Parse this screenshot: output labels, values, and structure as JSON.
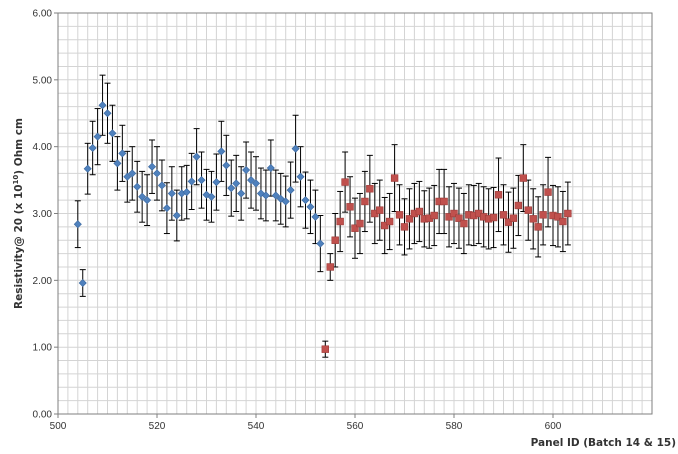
{
  "chart_data": {
    "type": "scatter",
    "title": "",
    "xlabel": "Panel  ID (Batch 14 & 15)",
    "ylabel": {
      "prefix": "Resistivity@ 20 (x 10",
      "sup": "10",
      "suffix": ") Ohm cm"
    },
    "xlim": [
      500,
      620
    ],
    "ylim": [
      0,
      6
    ],
    "x_ticks": [
      "500",
      "520",
      "540",
      "560",
      "580",
      "600"
    ],
    "y_ticks": [
      "0.00",
      "1.00",
      "2.00",
      "3.00",
      "4.00",
      "5.00",
      "6.00"
    ],
    "x_tick_values": [
      500,
      520,
      540,
      560,
      580,
      600
    ],
    "y_tick_values": [
      0,
      1,
      2,
      3,
      4,
      5,
      6
    ],
    "grid": true,
    "error_bars": true,
    "series": [
      {
        "marker": "diamond",
        "color": "#4f81bd",
        "x": [
          504,
          505,
          506,
          507,
          508,
          509,
          510,
          511,
          512,
          513,
          514,
          515,
          516,
          517,
          518,
          519,
          520,
          521,
          522,
          523,
          524,
          525,
          526,
          527,
          528,
          529,
          530,
          531,
          532,
          533,
          534,
          535,
          536,
          537,
          538,
          539,
          540,
          541,
          542,
          543,
          544,
          545,
          546,
          547,
          548,
          549,
          550,
          551,
          552,
          553
        ],
        "y": [
          2.84,
          1.96,
          3.67,
          3.98,
          4.15,
          4.62,
          4.5,
          4.2,
          3.75,
          3.9,
          3.55,
          3.6,
          3.4,
          3.25,
          3.2,
          3.7,
          3.6,
          3.42,
          3.08,
          3.3,
          2.97,
          3.3,
          3.32,
          3.48,
          3.85,
          3.5,
          3.28,
          3.25,
          3.47,
          3.93,
          3.72,
          3.38,
          3.45,
          3.3,
          3.65,
          3.5,
          3.45,
          3.3,
          3.27,
          3.68,
          3.27,
          3.22,
          3.18,
          3.35,
          3.97,
          3.55,
          3.2,
          3.1,
          2.95,
          2.55
        ],
        "err": [
          0.35,
          0.2,
          0.38,
          0.4,
          0.42,
          0.45,
          0.45,
          0.42,
          0.4,
          0.42,
          0.38,
          0.4,
          0.38,
          0.38,
          0.38,
          0.4,
          0.4,
          0.38,
          0.38,
          0.4,
          0.38,
          0.4,
          0.4,
          0.42,
          0.42,
          0.42,
          0.38,
          0.38,
          0.42,
          0.45,
          0.45,
          0.42,
          0.42,
          0.4,
          0.42,
          0.42,
          0.4,
          0.38,
          0.38,
          0.42,
          0.38,
          0.38,
          0.38,
          0.42,
          0.5,
          0.45,
          0.42,
          0.4,
          0.4,
          0.42
        ]
      },
      {
        "marker": "square",
        "color": "#c0504d",
        "x": [
          554,
          555,
          556,
          557,
          558,
          559,
          560,
          561,
          562,
          563,
          564,
          565,
          566,
          567,
          568,
          569,
          570,
          571,
          572,
          573,
          574,
          575,
          576,
          577,
          578,
          579,
          580,
          581,
          582,
          583,
          584,
          585,
          586,
          587,
          588,
          589,
          590,
          591,
          592,
          593,
          594,
          595,
          596,
          597,
          598,
          599,
          600,
          601,
          602,
          603
        ],
        "y": [
          0.97,
          2.2,
          2.6,
          2.88,
          3.47,
          3.1,
          2.78,
          2.85,
          3.18,
          3.37,
          3.0,
          3.05,
          2.82,
          2.88,
          3.53,
          2.98,
          2.8,
          2.92,
          3.0,
          3.03,
          2.92,
          2.93,
          2.97,
          3.18,
          3.18,
          2.95,
          3.0,
          2.93,
          2.85,
          2.98,
          2.97,
          3.0,
          2.95,
          2.92,
          2.94,
          3.28,
          2.98,
          2.87,
          2.93,
          3.12,
          3.53,
          3.05,
          2.92,
          2.8,
          2.98,
          3.32,
          2.97,
          2.95,
          2.88,
          3.0
        ],
        "err": [
          0.12,
          0.2,
          0.4,
          0.45,
          0.45,
          0.45,
          0.45,
          0.45,
          0.45,
          0.5,
          0.45,
          0.45,
          0.42,
          0.42,
          0.5,
          0.45,
          0.42,
          0.45,
          0.45,
          0.45,
          0.42,
          0.45,
          0.45,
          0.48,
          0.48,
          0.45,
          0.45,
          0.45,
          0.45,
          0.45,
          0.45,
          0.45,
          0.45,
          0.45,
          0.45,
          0.55,
          0.45,
          0.45,
          0.45,
          0.45,
          0.5,
          0.45,
          0.45,
          0.45,
          0.45,
          0.52,
          0.45,
          0.45,
          0.45,
          0.47
        ]
      }
    ]
  }
}
